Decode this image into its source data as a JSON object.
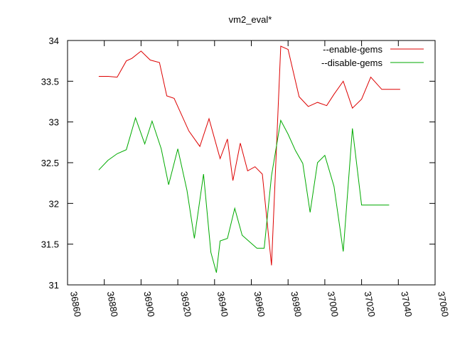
{
  "chart_data": {
    "type": "line",
    "title": "vm2_eval*",
    "xlabel": "",
    "ylabel": "",
    "xlim": [
      36860,
      37060
    ],
    "ylim": [
      31,
      34
    ],
    "xticks": [
      36860,
      36880,
      36900,
      36920,
      36940,
      36960,
      36980,
      37000,
      37020,
      37040,
      37060
    ],
    "yticks": [
      31,
      31.5,
      32,
      32.5,
      33,
      33.5,
      34
    ],
    "grid": false,
    "legend": "top-right",
    "series": [
      {
        "name": "--enable-gems",
        "color": "#dd0000",
        "x": [
          36877,
          36882,
          36887,
          36892,
          36895,
          36900,
          36905,
          36910,
          36914,
          36918,
          36926,
          36932,
          36937,
          36943,
          36947,
          36950,
          36954,
          36958,
          36962,
          36966,
          36971,
          36976,
          36980,
          36986,
          36991,
          36996,
          37001,
          37005,
          37010,
          37015,
          37020,
          37025,
          37031,
          37036,
          37041
        ],
        "y": [
          33.56,
          33.56,
          33.55,
          33.75,
          33.78,
          33.87,
          33.76,
          33.73,
          33.32,
          33.29,
          32.89,
          32.7,
          33.04,
          32.55,
          32.79,
          32.28,
          32.74,
          32.4,
          32.45,
          32.36,
          31.24,
          33.93,
          33.89,
          33.31,
          33.19,
          33.24,
          33.2,
          33.34,
          33.5,
          33.17,
          33.28,
          33.55,
          33.4,
          33.4,
          33.4
        ]
      },
      {
        "name": "--disable-gems",
        "color": "#00aa00",
        "x": [
          36877,
          36882,
          36887,
          36892,
          36897,
          36902,
          36906,
          36911,
          36915,
          36920,
          36925,
          36929,
          36934,
          36938,
          36941,
          36943,
          36947,
          36951,
          36955,
          36959,
          36963,
          36967,
          36971,
          36976,
          36980,
          36984,
          36988,
          36992,
          36996,
          37000,
          37005,
          37010,
          37015,
          37020,
          37025,
          37030,
          37035
        ],
        "y": [
          32.41,
          32.53,
          32.61,
          32.66,
          33.05,
          32.73,
          33.01,
          32.67,
          32.23,
          32.67,
          32.16,
          31.57,
          32.36,
          31.4,
          31.15,
          31.54,
          31.57,
          31.94,
          31.61,
          31.53,
          31.45,
          31.45,
          32.34,
          33.02,
          32.85,
          32.65,
          32.49,
          31.89,
          32.5,
          32.59,
          32.21,
          31.41,
          32.92,
          31.98,
          31.98,
          31.98,
          31.98
        ]
      }
    ]
  }
}
